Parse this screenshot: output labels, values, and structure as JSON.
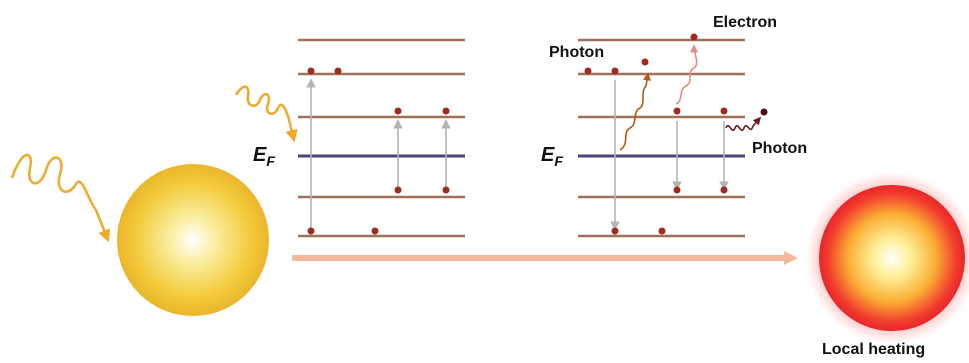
{
  "labels": {
    "fermi_level": "E",
    "fermi_subscript": "F",
    "electron": "Electron",
    "photon_top": "Photon",
    "photon_right": "Photon",
    "local_heating": "Local heating"
  },
  "colors": {
    "energy_level": "#a0715a",
    "fermi_level": "#4a4477",
    "electron_dot": "#a12a1e",
    "transition_arrow": "#b4b4b4",
    "incident_light": "#f0a92a",
    "process_arrow": "#f4b89a",
    "nanoparticle_gold": "#f0c030",
    "hot_particle": "#f03a32"
  }
}
